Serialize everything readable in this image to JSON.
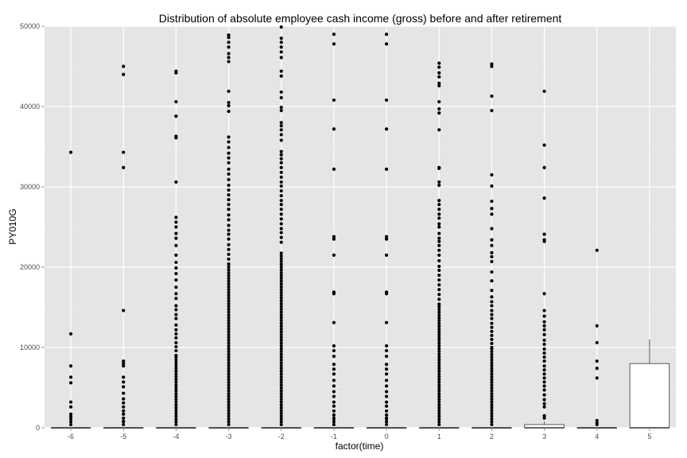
{
  "chart_data": {
    "type": "box",
    "title": "Distribution of absolute employee cash income (gross) before and after retirement",
    "xlabel": "factor(time)",
    "ylabel": "PY010G",
    "ylim": [
      0,
      50000
    ],
    "yticks": [
      0,
      10000,
      20000,
      30000,
      40000,
      50000
    ],
    "ytick_labels": [
      "0",
      "10000",
      "20000",
      "30000",
      "40000",
      "50000"
    ],
    "categories": [
      "-6",
      "-5",
      "-4",
      "-3",
      "-2",
      "-1",
      "0",
      "1",
      "2",
      "3",
      "4",
      "5"
    ],
    "grid": true,
    "colors": {
      "panel": "#e5e5e5",
      "grid": "#ffffff",
      "box_fill": "#ffffff",
      "box_line": "#333333",
      "point": "#000000"
    },
    "boxes": [
      {
        "category": "-6",
        "q1": 0,
        "median": 0,
        "q3": 0,
        "whisker_low": 0,
        "whisker_high": 0,
        "outliers": [
          34300,
          11700,
          7700,
          6300,
          5600,
          3200,
          2600,
          1700,
          1400
        ]
      },
      {
        "category": "-5",
        "q1": 0,
        "median": 0,
        "q3": 0,
        "whisker_low": 0,
        "whisker_high": 0,
        "outliers": [
          45000,
          44000,
          34300,
          32400,
          14600,
          8300,
          8000,
          7700,
          6300,
          5700,
          5100,
          4300,
          3600,
          3100,
          2600,
          2100,
          1700,
          1200,
          800
        ]
      },
      {
        "category": "-4",
        "q1": 0,
        "median": 0,
        "q3": 0,
        "whisker_low": 0,
        "whisker_high": 0,
        "outliers": [
          44400,
          44200,
          40600,
          38800,
          36300,
          36100,
          30600,
          26200,
          25600,
          25000,
          24200,
          23600,
          22700,
          21500,
          20600,
          19900,
          19200,
          18400,
          17500,
          16700,
          16100,
          15200,
          14700,
          14100,
          13600,
          12800,
          12200,
          11700,
          11200,
          10600,
          10100,
          9600,
          9000
        ]
      },
      {
        "category": "-3",
        "q1": 0,
        "median": 0,
        "q3": 0,
        "whisker_low": 0,
        "whisker_high": 0,
        "outliers": [
          48900,
          48600,
          48000,
          47400,
          46600,
          46100,
          45600,
          41900,
          40500,
          40100,
          39400,
          36200,
          35600,
          34900,
          34200,
          33600,
          33000,
          32200,
          31600,
          30900,
          30200,
          29600,
          29000,
          28400,
          27800,
          27200,
          26500,
          25900,
          25200,
          24600,
          24100,
          23500,
          22800,
          22200,
          21600,
          21000,
          20400
        ]
      },
      {
        "category": "-2",
        "q1": 0,
        "median": 0,
        "q3": 0,
        "whisker_low": 0,
        "whisker_high": 0,
        "outliers": [
          49900,
          48500,
          48000,
          47400,
          46800,
          46100,
          44400,
          43800,
          41800,
          41100,
          39900,
          39500,
          38000,
          37600,
          37100,
          36500,
          35800,
          34400,
          34000,
          33500,
          33000,
          32400,
          31800,
          31200,
          30600,
          30100,
          29500,
          28900,
          28300,
          27800,
          27200,
          26600,
          26000,
          25400,
          24800,
          24300,
          23700,
          23100
        ]
      },
      {
        "category": "-1",
        "q1": 0,
        "median": 0,
        "q3": 0,
        "whisker_low": 0,
        "whisker_high": 0,
        "outliers": [
          49000,
          47800,
          40800,
          37200,
          32200,
          23800,
          23500,
          21500,
          16900,
          16700,
          13100,
          10200,
          9600,
          8900,
          7900,
          7300,
          6700,
          5900,
          5200,
          4500,
          3900,
          3200,
          2700,
          2100,
          1600,
          1200
        ]
      },
      {
        "category": "0",
        "q1": 0,
        "median": 0,
        "q3": 0,
        "whisker_low": 0,
        "whisker_high": 0,
        "outliers": [
          49000,
          47800,
          40800,
          37200,
          32200,
          23800,
          23500,
          21500,
          16900,
          16700,
          13100,
          10200,
          9600,
          8900,
          7900,
          7300,
          6700,
          5900,
          5200,
          4500,
          3900,
          3200,
          2700,
          2100,
          1600,
          1200
        ]
      },
      {
        "category": "1",
        "q1": 0,
        "median": 0,
        "q3": 0,
        "whisker_low": 0,
        "whisker_high": 0,
        "outliers": [
          45400,
          44900,
          44200,
          43700,
          42900,
          42600,
          40600,
          39700,
          39200,
          37100,
          32400,
          32300,
          30600,
          30200,
          28300,
          27800,
          27200,
          26600,
          26100,
          25400,
          25000,
          24200,
          23600,
          23200,
          22700,
          22100,
          21500,
          20800,
          20100,
          19600,
          19000,
          18400,
          17800,
          17200,
          16600,
          16000,
          15400
        ]
      },
      {
        "category": "2",
        "q1": 0,
        "median": 0,
        "q3": 0,
        "whisker_low": 0,
        "whisker_high": 0,
        "outliers": [
          45300,
          45000,
          41300,
          39500,
          31500,
          30100,
          28200,
          27300,
          26600,
          24800,
          23400,
          22700,
          21800,
          21300,
          20700,
          19400,
          18300,
          17100,
          16300,
          15700,
          15200,
          14600,
          14100,
          13600,
          13000,
          12500,
          12000,
          11500,
          11000,
          10500,
          10000
        ]
      },
      {
        "category": "3",
        "q1": 0,
        "median": 0,
        "q3": 400,
        "whisker_low": 0,
        "whisker_high": 800,
        "outliers": [
          41900,
          35200,
          32400,
          28600,
          24100,
          23400,
          23200,
          16700,
          14600,
          13900,
          13200,
          12700,
          12200,
          11600,
          10900,
          10400,
          9800,
          9300,
          8800,
          8300,
          7700,
          7200,
          6700,
          6200,
          5700,
          5200,
          4700,
          4100,
          3500,
          3000,
          2600,
          1500
        ]
      },
      {
        "category": "4",
        "q1": 0,
        "median": 0,
        "q3": 0,
        "whisker_low": 0,
        "whisker_high": 0,
        "outliers": [
          22100,
          12700,
          10600,
          8300,
          7400,
          6200,
          900,
          600
        ]
      },
      {
        "category": "5",
        "q1": 0,
        "median": 0,
        "q3": 8000,
        "whisker_low": 0,
        "whisker_high": 11000,
        "outliers": []
      }
    ]
  }
}
